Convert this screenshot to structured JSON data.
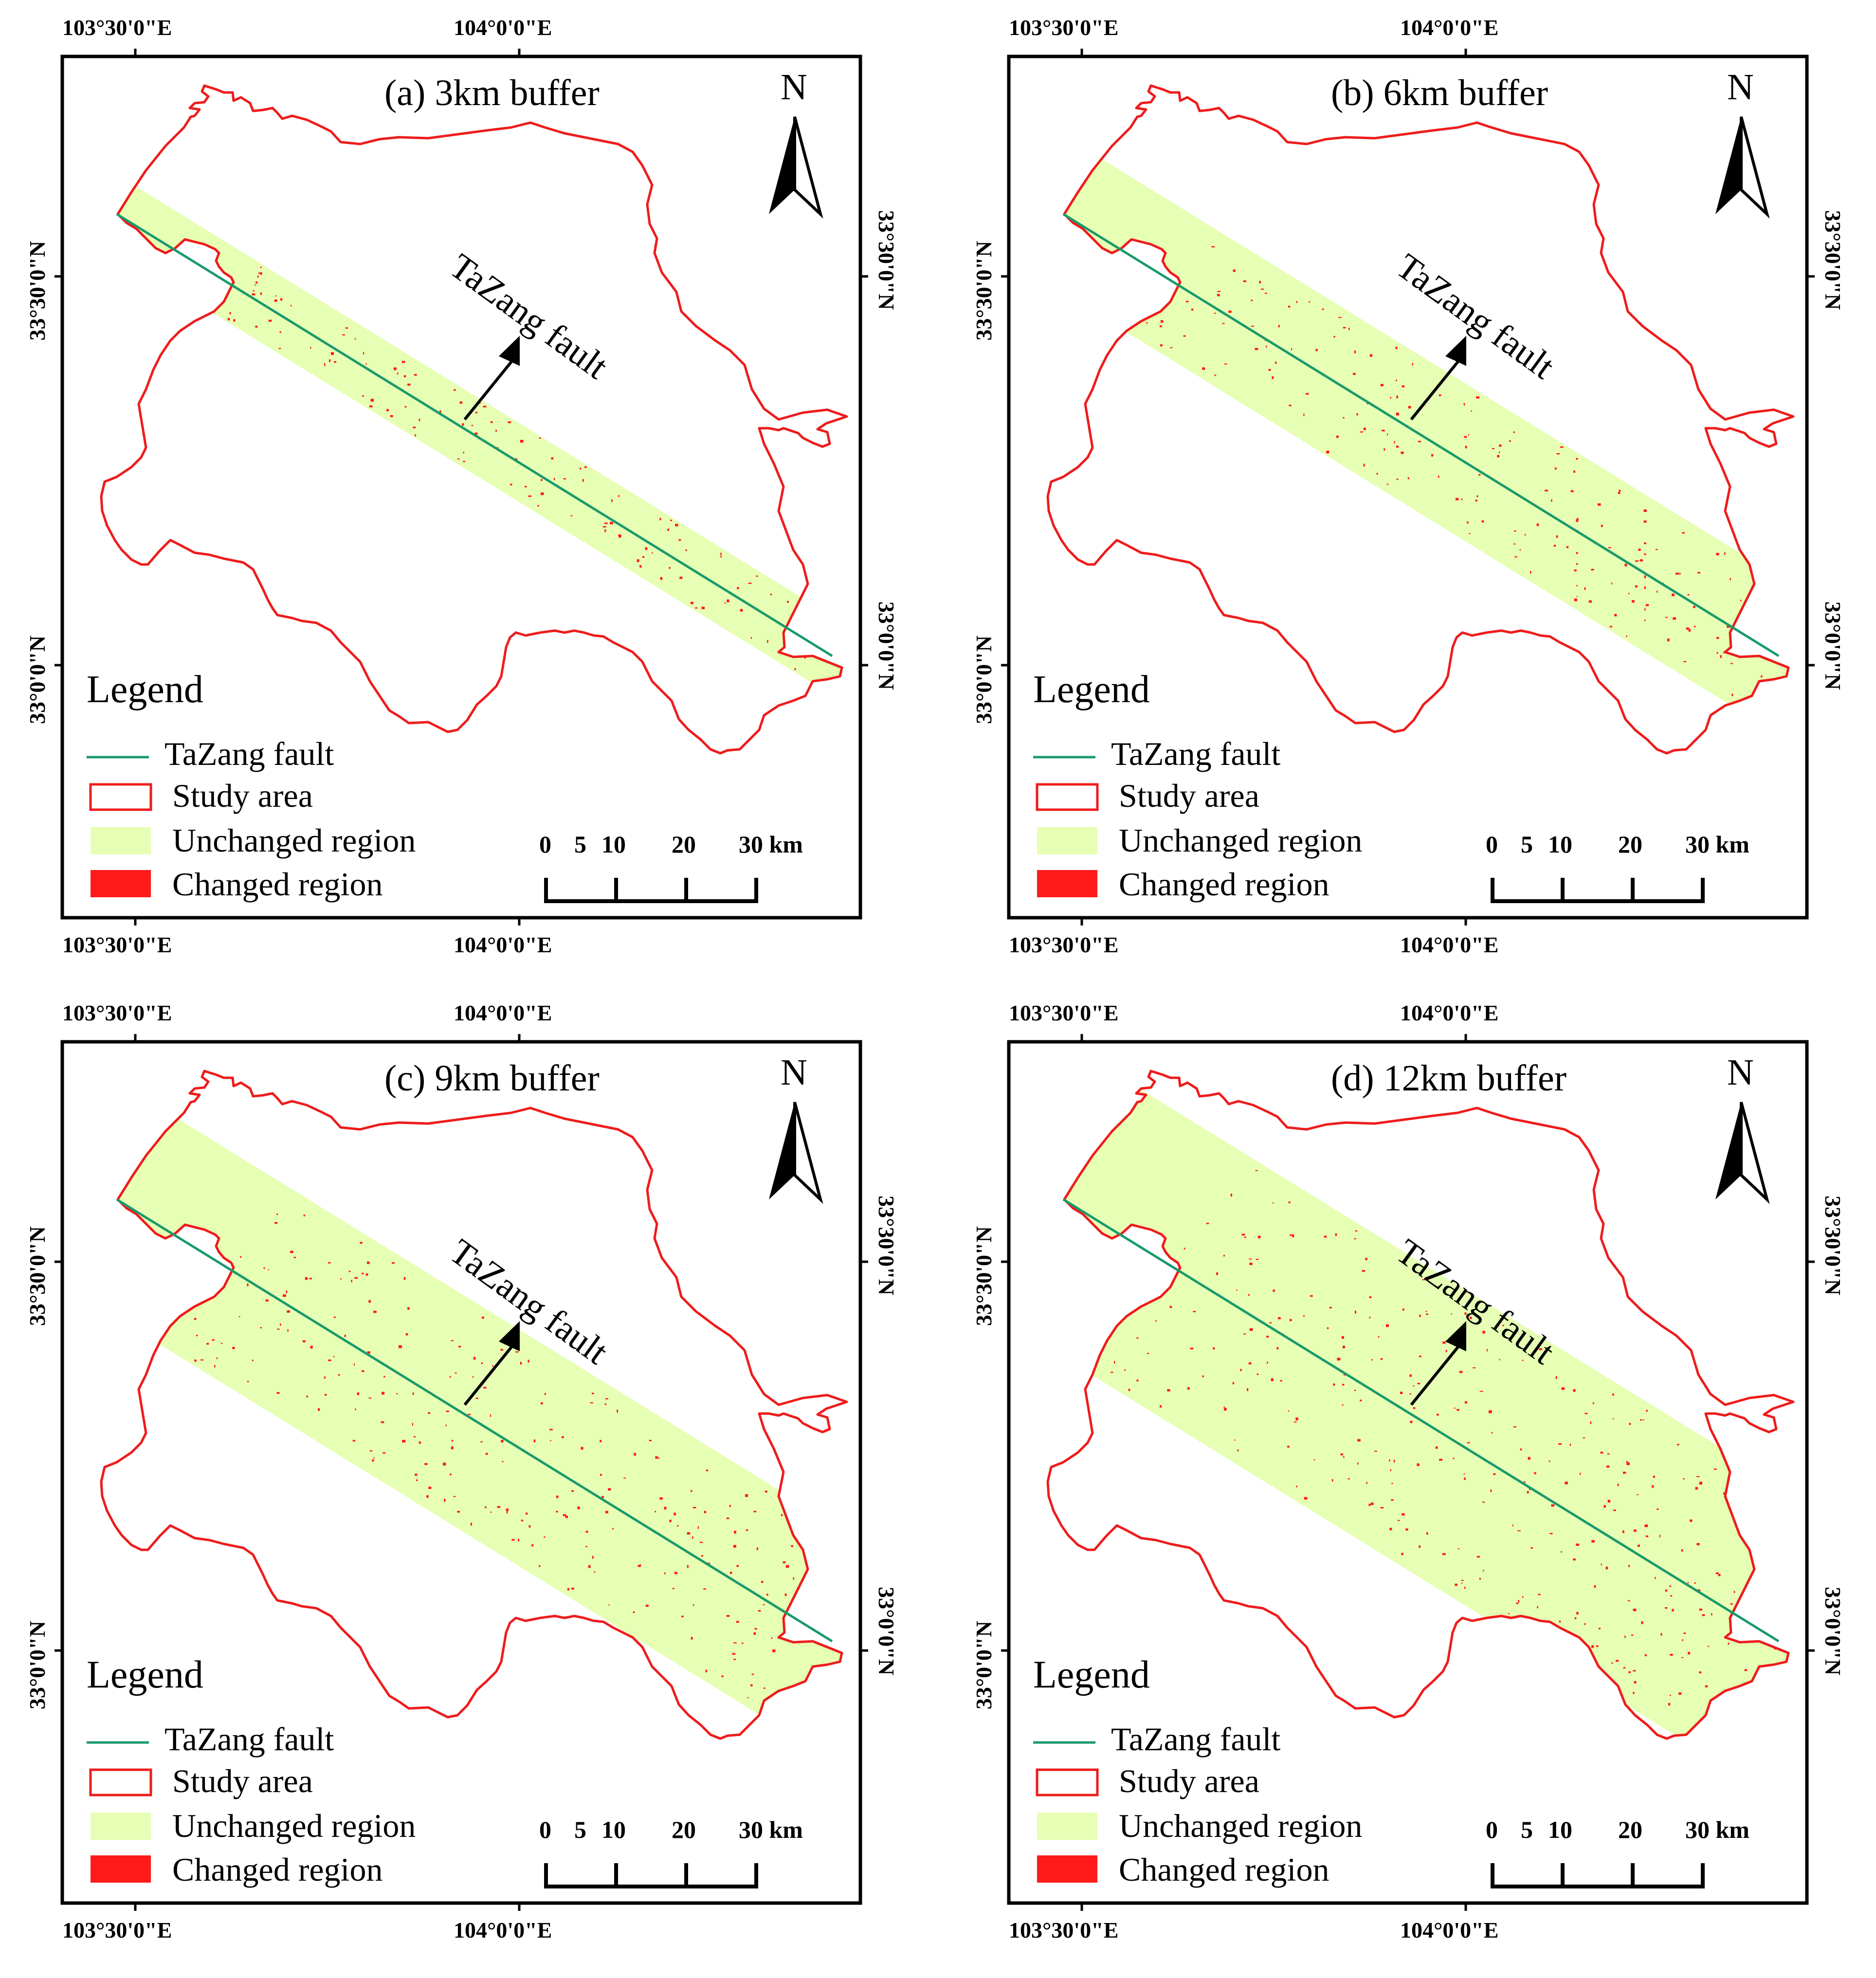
{
  "coordinates": {
    "lon_left": "103°30'0\"E",
    "lon_right": "104°0'0\"E",
    "lat_top": "33°30'0\"N",
    "lat_bottom": "33°0'0\"N"
  },
  "north_label": "N",
  "fault_label": "TaZang fault",
  "legend": {
    "title": "Legend",
    "fault": "TaZang fault",
    "study_area": "Study area",
    "unchanged": "Unchanged region",
    "changed": "Changed region"
  },
  "scale_bar": {
    "labels": [
      "0",
      "5",
      "10",
      "20",
      "30 km"
    ]
  },
  "colors": {
    "fault": "#1a9a6c",
    "study_area": "#ee1c1c",
    "unchanged": "#e6ffb4",
    "changed": "#ff1a1a"
  },
  "panels": [
    {
      "title": "(a) 3km buffer",
      "buffer_km": 3
    },
    {
      "title": "(b) 6km buffer",
      "buffer_km": 6
    },
    {
      "title": "(c) 9km buffer",
      "buffer_km": 9
    },
    {
      "title": "(d) 12km buffer",
      "buffer_km": 12
    }
  ]
}
